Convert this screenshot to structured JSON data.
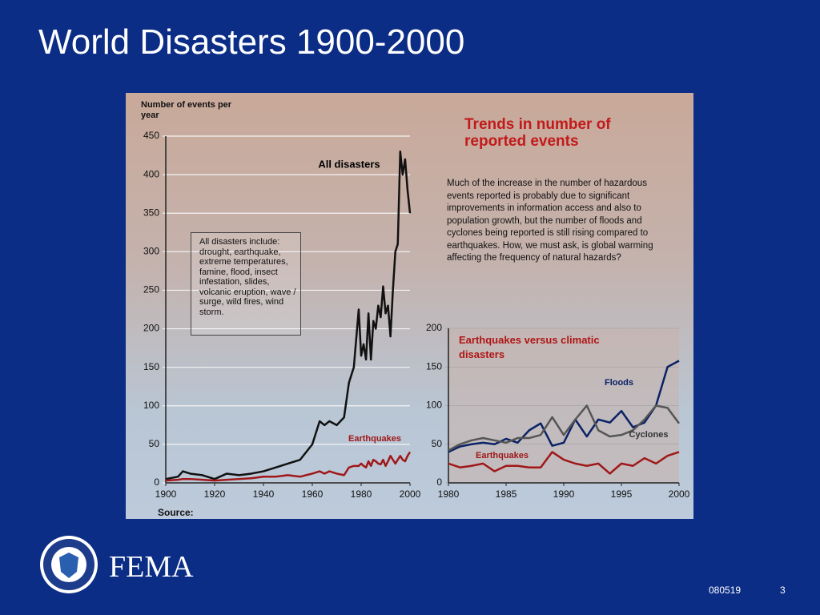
{
  "title": "World Disasters 1900-2000",
  "logo_text": "FEMA",
  "footer": {
    "code": "080519",
    "page": "3"
  },
  "chart_data": [
    {
      "type": "line",
      "y_label": "Number of events per year",
      "source": "Source:",
      "note": "All disasters include: drought, earthquake, extreme temperatures, famine, flood, insect infestation, slides, volcanic eruption, wave / surge, wild fires, wind storm.",
      "x": [
        1900,
        1905,
        1907,
        1910,
        1915,
        1920,
        1925,
        1930,
        1935,
        1940,
        1945,
        1950,
        1955,
        1960,
        1963,
        1965,
        1967,
        1970,
        1973,
        1975,
        1977,
        1979,
        1980,
        1981,
        1982,
        1983,
        1984,
        1985,
        1986,
        1987,
        1988,
        1989,
        1990,
        1991,
        1992,
        1993,
        1994,
        1995,
        1996,
        1997,
        1998,
        1999,
        2000
      ],
      "xlim": [
        1900,
        2000
      ],
      "xticks": [
        1900,
        1920,
        1940,
        1960,
        1980,
        2000
      ],
      "ylim": [
        0,
        450
      ],
      "yticks": [
        0,
        50,
        100,
        150,
        200,
        250,
        300,
        350,
        400,
        450
      ],
      "grid": true,
      "series": [
        {
          "name": "All disasters",
          "color": "#111111",
          "values": [
            5,
            8,
            15,
            12,
            10,
            5,
            12,
            10,
            12,
            15,
            20,
            25,
            30,
            50,
            80,
            75,
            80,
            75,
            85,
            130,
            150,
            225,
            165,
            180,
            160,
            220,
            160,
            210,
            200,
            230,
            215,
            255,
            220,
            230,
            190,
            250,
            300,
            310,
            430,
            400,
            420,
            380,
            350
          ]
        },
        {
          "name": "Earthquakes",
          "color": "#a01818",
          "values": [
            3,
            4,
            5,
            5,
            4,
            3,
            4,
            5,
            6,
            8,
            8,
            10,
            8,
            12,
            15,
            12,
            15,
            12,
            10,
            20,
            22,
            22,
            25,
            22,
            20,
            28,
            22,
            30,
            28,
            25,
            24,
            30,
            22,
            28,
            35,
            30,
            25,
            30,
            35,
            30,
            28,
            35,
            40
          ]
        }
      ]
    },
    {
      "type": "line",
      "heading": "Trends in number of reported events",
      "description": "Much of the increase in the number of hazardous events reported is probably due to significant improvements in information access and also to population growth, but the number of floods and cyclones being reported is still rising compared to earthquakes. How, we must ask, is global warming affecting the frequency of natural hazards?",
      "title": "Earthquakes versus climatic disasters",
      "x": [
        1980,
        1981,
        1982,
        1983,
        1984,
        1985,
        1986,
        1987,
        1988,
        1989,
        1990,
        1991,
        1992,
        1993,
        1994,
        1995,
        1996,
        1997,
        1998,
        1999,
        2000
      ],
      "xlim": [
        1980,
        2000
      ],
      "xticks": [
        1980,
        1985,
        1990,
        1995,
        2000
      ],
      "ylim": [
        0,
        200
      ],
      "yticks": [
        0,
        50,
        100,
        150,
        200
      ],
      "series": [
        {
          "name": "Floods",
          "color": "#0a2266",
          "values": [
            40,
            47,
            50,
            52,
            50,
            57,
            52,
            68,
            77,
            48,
            52,
            82,
            60,
            82,
            78,
            93,
            72,
            78,
            100,
            150,
            158
          ]
        },
        {
          "name": "Cyclones",
          "color": "#555555",
          "values": [
            42,
            50,
            55,
            58,
            55,
            52,
            58,
            58,
            62,
            85,
            62,
            82,
            100,
            68,
            60,
            62,
            68,
            82,
            100,
            97,
            77
          ]
        },
        {
          "name": "Earthquakes",
          "color": "#a01818",
          "values": [
            25,
            20,
            22,
            25,
            15,
            22,
            22,
            20,
            20,
            40,
            30,
            25,
            22,
            25,
            12,
            25,
            22,
            32,
            25,
            35,
            40
          ]
        }
      ]
    }
  ]
}
